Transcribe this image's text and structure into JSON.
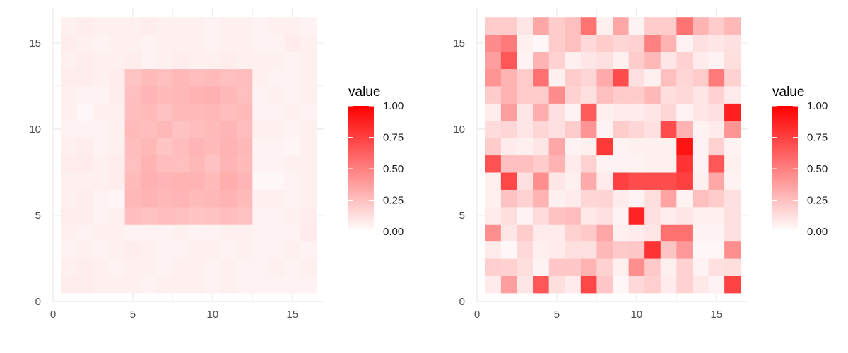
{
  "colors": {
    "low": "#ffffff",
    "high": "#ff0000",
    "grid": "#ebebeb",
    "text": "#4d4d4d"
  },
  "chart_data": [
    {
      "type": "heatmap",
      "title": "",
      "xlabel": "",
      "ylabel": "",
      "x": [
        1,
        2,
        3,
        4,
        5,
        6,
        7,
        8,
        9,
        10,
        11,
        12,
        13,
        14,
        15,
        16
      ],
      "y": [
        1,
        2,
        3,
        4,
        5,
        6,
        7,
        8,
        9,
        10,
        11,
        12,
        13,
        14,
        15,
        16
      ],
      "xlim": [
        0,
        17
      ],
      "ylim": [
        0,
        17
      ],
      "xticks": [
        0,
        5,
        10,
        15
      ],
      "yticks": [
        0,
        5,
        10,
        15
      ],
      "grid": true,
      "legend": {
        "title": "value",
        "ticks": [
          "0.00",
          "0.25",
          "0.50",
          "0.75",
          "1.00"
        ],
        "position": "right"
      },
      "values": [
        [
          0.07,
          0.07,
          0.06,
          0.06,
          0.06,
          0.05,
          0.06,
          0.06,
          0.06,
          0.05,
          0.06,
          0.05,
          0.05,
          0.05,
          0.05,
          0.05
        ],
        [
          0.06,
          0.07,
          0.06,
          0.05,
          0.06,
          0.06,
          0.05,
          0.06,
          0.06,
          0.05,
          0.06,
          0.05,
          0.05,
          0.06,
          0.05,
          0.06
        ],
        [
          0.05,
          0.06,
          0.05,
          0.06,
          0.07,
          0.06,
          0.05,
          0.05,
          0.06,
          0.06,
          0.05,
          0.06,
          0.05,
          0.05,
          0.06,
          0.05
        ],
        [
          0.06,
          0.05,
          0.06,
          0.06,
          0.05,
          0.05,
          0.05,
          0.06,
          0.05,
          0.05,
          0.06,
          0.06,
          0.05,
          0.05,
          0.05,
          0.08
        ],
        [
          0.07,
          0.07,
          0.05,
          0.06,
          0.26,
          0.24,
          0.26,
          0.25,
          0.23,
          0.24,
          0.26,
          0.24,
          0.05,
          0.05,
          0.06,
          0.07
        ],
        [
          0.06,
          0.07,
          0.05,
          0.04,
          0.28,
          0.3,
          0.28,
          0.29,
          0.27,
          0.28,
          0.3,
          0.27,
          0.06,
          0.06,
          0.05,
          0.06
        ],
        [
          0.06,
          0.06,
          0.06,
          0.07,
          0.27,
          0.31,
          0.29,
          0.3,
          0.3,
          0.27,
          0.32,
          0.29,
          0.03,
          0.03,
          0.05,
          0.06
        ],
        [
          0.07,
          0.08,
          0.06,
          0.07,
          0.25,
          0.3,
          0.26,
          0.25,
          0.28,
          0.24,
          0.29,
          0.27,
          0.05,
          0.05,
          0.06,
          0.06
        ],
        [
          0.06,
          0.07,
          0.05,
          0.06,
          0.26,
          0.28,
          0.23,
          0.26,
          0.29,
          0.27,
          0.3,
          0.28,
          0.05,
          0.05,
          0.04,
          0.06
        ],
        [
          0.05,
          0.05,
          0.05,
          0.06,
          0.27,
          0.26,
          0.28,
          0.24,
          0.26,
          0.27,
          0.29,
          0.26,
          0.06,
          0.06,
          0.05,
          0.06
        ],
        [
          0.06,
          0.03,
          0.06,
          0.06,
          0.26,
          0.27,
          0.24,
          0.27,
          0.27,
          0.28,
          0.26,
          0.27,
          0.05,
          0.05,
          0.06,
          0.05
        ],
        [
          0.06,
          0.05,
          0.05,
          0.07,
          0.25,
          0.29,
          0.27,
          0.28,
          0.3,
          0.31,
          0.28,
          0.25,
          0.05,
          0.06,
          0.05,
          0.06
        ],
        [
          0.07,
          0.07,
          0.06,
          0.07,
          0.23,
          0.27,
          0.25,
          0.28,
          0.26,
          0.27,
          0.25,
          0.26,
          0.06,
          0.05,
          0.05,
          0.06
        ],
        [
          0.06,
          0.07,
          0.06,
          0.06,
          0.07,
          0.05,
          0.06,
          0.07,
          0.06,
          0.06,
          0.07,
          0.06,
          0.06,
          0.06,
          0.05,
          0.06
        ],
        [
          0.07,
          0.06,
          0.05,
          0.06,
          0.06,
          0.05,
          0.06,
          0.06,
          0.06,
          0.05,
          0.06,
          0.06,
          0.05,
          0.05,
          0.08,
          0.06
        ],
        [
          0.06,
          0.07,
          0.06,
          0.06,
          0.06,
          0.07,
          0.06,
          0.06,
          0.06,
          0.05,
          0.06,
          0.06,
          0.05,
          0.06,
          0.06,
          0.05
        ]
      ]
    },
    {
      "type": "heatmap",
      "title": "",
      "xlabel": "",
      "ylabel": "",
      "x": [
        1,
        2,
        3,
        4,
        5,
        6,
        7,
        8,
        9,
        10,
        11,
        12,
        13,
        14,
        15,
        16
      ],
      "y": [
        1,
        2,
        3,
        4,
        5,
        6,
        7,
        8,
        9,
        10,
        11,
        12,
        13,
        14,
        15,
        16
      ],
      "xlim": [
        0,
        17
      ],
      "ylim": [
        0,
        17
      ],
      "xticks": [
        0,
        5,
        10,
        15
      ],
      "yticks": [
        0,
        5,
        10,
        15
      ],
      "grid": true,
      "legend": {
        "title": "value",
        "ticks": [
          "0.00",
          "0.25",
          "0.50",
          "0.75",
          "1.00"
        ],
        "position": "right"
      },
      "values": [
        [
          0.08,
          0.38,
          0.1,
          0.66,
          0.13,
          0.08,
          0.72,
          0.22,
          0.03,
          0.15,
          0.19,
          0.08,
          0.18,
          0.09,
          0.05,
          0.74
        ],
        [
          0.19,
          0.18,
          0.13,
          0.05,
          0.22,
          0.22,
          0.3,
          0.18,
          0.06,
          0.44,
          0.21,
          0.06,
          0.18,
          0.05,
          0.12,
          0.13
        ],
        [
          0.08,
          0.03,
          0.15,
          0.06,
          0.08,
          0.12,
          0.12,
          0.28,
          0.21,
          0.22,
          0.8,
          0.23,
          0.4,
          0.03,
          0.03,
          0.44
        ],
        [
          0.44,
          0.1,
          0.2,
          0.08,
          0.08,
          0.18,
          0.21,
          0.35,
          0.06,
          0.08,
          0.1,
          0.56,
          0.56,
          0.05,
          0.05,
          0.12
        ],
        [
          0.08,
          0.13,
          0.05,
          0.14,
          0.24,
          0.26,
          0.09,
          0.12,
          0.05,
          0.86,
          0.12,
          0.07,
          0.1,
          0.06,
          0.06,
          0.12
        ],
        [
          0.06,
          0.24,
          0.18,
          0.3,
          0.06,
          0.08,
          0.16,
          0.17,
          0.08,
          0.05,
          0.13,
          0.36,
          0.05,
          0.25,
          0.2,
          0.12
        ],
        [
          0.06,
          0.72,
          0.12,
          0.44,
          0.1,
          0.06,
          0.33,
          0.08,
          0.75,
          0.7,
          0.7,
          0.7,
          0.75,
          0.06,
          0.35,
          0.05
        ],
        [
          0.68,
          0.25,
          0.25,
          0.2,
          0.3,
          0.08,
          0.18,
          0.05,
          0.05,
          0.05,
          0.06,
          0.06,
          0.8,
          0.05,
          0.66,
          0.06
        ],
        [
          0.2,
          0.08,
          0.06,
          0.1,
          0.35,
          0.05,
          0.06,
          0.78,
          0.05,
          0.06,
          0.06,
          0.06,
          0.92,
          0.05,
          0.18,
          0.05
        ],
        [
          0.14,
          0.16,
          0.1,
          0.16,
          0.12,
          0.2,
          0.42,
          0.05,
          0.2,
          0.16,
          0.12,
          0.7,
          0.3,
          0.05,
          0.08,
          0.42
        ],
        [
          0.07,
          0.38,
          0.1,
          0.32,
          0.12,
          0.05,
          0.64,
          0.06,
          0.08,
          0.08,
          0.1,
          0.16,
          0.05,
          0.1,
          0.12,
          0.88
        ],
        [
          0.2,
          0.3,
          0.2,
          0.2,
          0.45,
          0.18,
          0.12,
          0.25,
          0.2,
          0.2,
          0.28,
          0.13,
          0.15,
          0.1,
          0.18,
          0.08
        ],
        [
          0.42,
          0.3,
          0.2,
          0.56,
          0.06,
          0.2,
          0.16,
          0.33,
          0.7,
          0.12,
          0.06,
          0.25,
          0.16,
          0.2,
          0.52,
          0.18
        ],
        [
          0.38,
          0.66,
          0.05,
          0.3,
          0.18,
          0.06,
          0.1,
          0.12,
          0.06,
          0.2,
          0.28,
          0.1,
          0.18,
          0.08,
          0.05,
          0.13
        ],
        [
          0.45,
          0.52,
          0.06,
          0.03,
          0.2,
          0.25,
          0.15,
          0.2,
          0.16,
          0.18,
          0.5,
          0.3,
          0.05,
          0.12,
          0.1,
          0.12
        ],
        [
          0.2,
          0.2,
          0.1,
          0.35,
          0.2,
          0.25,
          0.55,
          0.06,
          0.35,
          0.05,
          0.2,
          0.2,
          0.55,
          0.3,
          0.2,
          0.28
        ]
      ]
    }
  ]
}
